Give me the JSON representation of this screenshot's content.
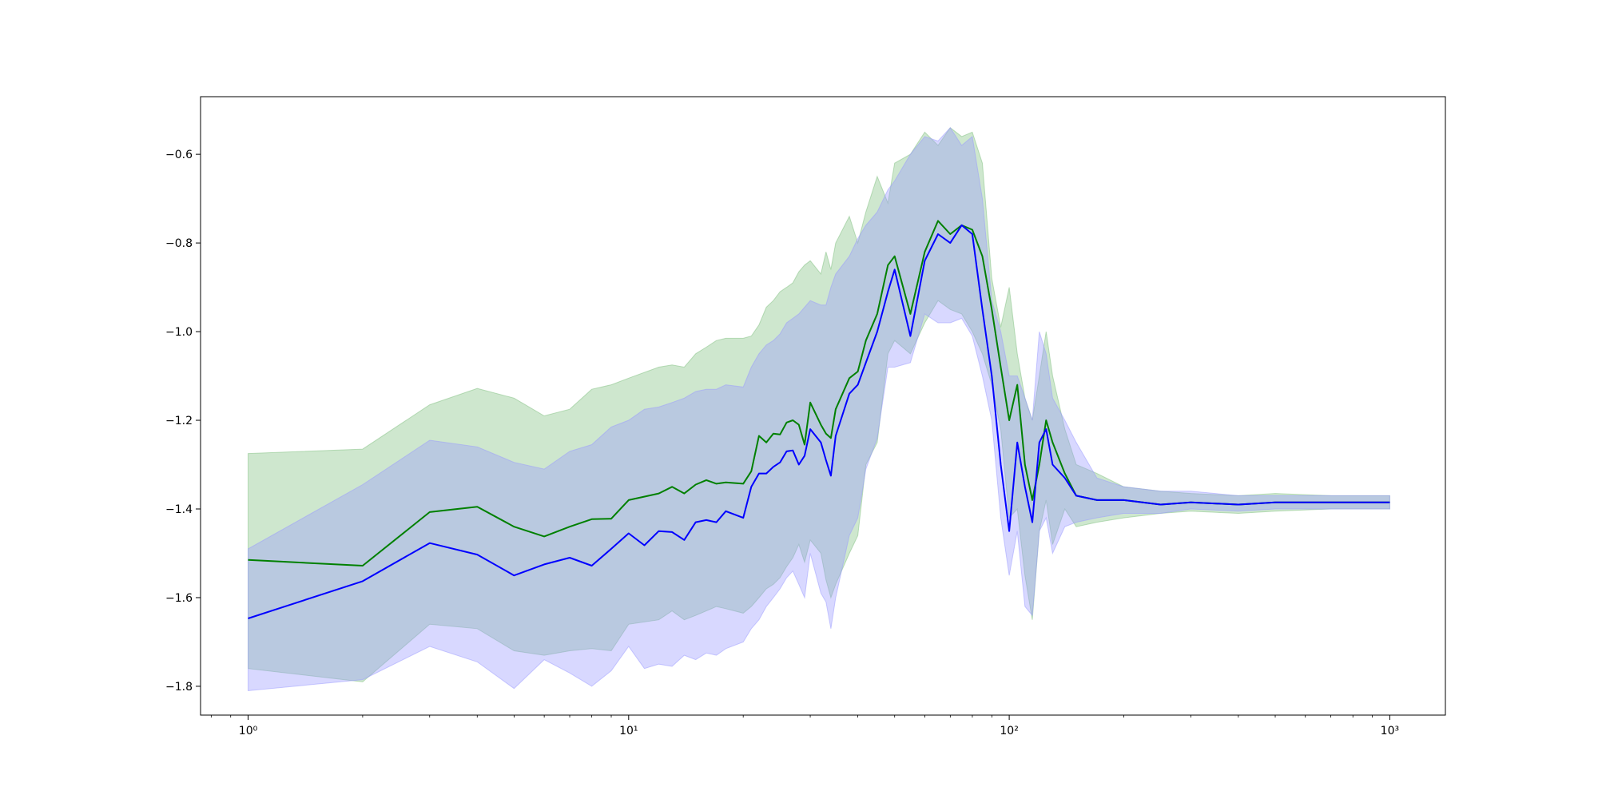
{
  "chart_data": {
    "type": "line",
    "title": "",
    "xlabel": "",
    "ylabel": "",
    "x_scale": "log",
    "xlim": [
      0.75,
      1400
    ],
    "ylim": [
      -1.865,
      -0.47
    ],
    "grid": false,
    "legend": "none",
    "x_ticks": [
      {
        "value": 1,
        "label": "10⁰"
      },
      {
        "value": 10,
        "label": "10¹"
      },
      {
        "value": 100,
        "label": "10²"
      },
      {
        "value": 1000,
        "label": "10³"
      }
    ],
    "y_ticks": [
      {
        "value": -0.6,
        "label": "−0.6"
      },
      {
        "value": -0.8,
        "label": "−0.8"
      },
      {
        "value": -1.0,
        "label": "−1.0"
      },
      {
        "value": -1.2,
        "label": "−1.2"
      },
      {
        "value": -1.4,
        "label": "−1.4"
      },
      {
        "value": -1.6,
        "label": "−1.6"
      },
      {
        "value": -1.8,
        "label": "−1.8"
      }
    ],
    "series": [
      {
        "color": "#008000",
        "band_color": "#7fbf7f",
        "x": [
          1,
          2,
          3,
          4,
          5,
          6,
          7,
          8,
          9,
          10,
          12,
          13,
          14,
          15,
          16,
          17,
          18,
          20,
          21,
          22,
          23,
          24,
          25,
          26,
          27,
          28,
          29,
          30,
          32,
          33,
          34,
          35,
          38,
          40,
          42,
          45,
          48,
          50,
          55,
          60,
          65,
          70,
          75,
          80,
          85,
          90,
          95,
          100,
          105,
          110,
          115,
          120,
          125,
          130,
          140,
          150,
          170,
          200,
          250,
          300,
          400,
          500,
          700,
          1000
        ],
        "mean": [
          -1.515,
          -1.528,
          -1.407,
          -1.395,
          -1.44,
          -1.462,
          -1.44,
          -1.423,
          -1.422,
          -1.38,
          -1.365,
          -1.35,
          -1.365,
          -1.345,
          -1.335,
          -1.343,
          -1.34,
          -1.343,
          -1.315,
          -1.235,
          -1.25,
          -1.23,
          -1.232,
          -1.205,
          -1.2,
          -1.21,
          -1.255,
          -1.16,
          -1.21,
          -1.23,
          -1.24,
          -1.175,
          -1.105,
          -1.09,
          -1.02,
          -0.96,
          -0.85,
          -0.83,
          -0.96,
          -0.82,
          -0.75,
          -0.78,
          -0.76,
          -0.77,
          -0.83,
          -0.95,
          -1.08,
          -1.2,
          -1.12,
          -1.3,
          -1.38,
          -1.3,
          -1.2,
          -1.25,
          -1.32,
          -1.37,
          -1.38,
          -1.38,
          -1.39,
          -1.385,
          -1.39,
          -1.385,
          -1.385,
          -1.385
        ],
        "upper": [
          -1.275,
          -1.265,
          -1.165,
          -1.128,
          -1.15,
          -1.19,
          -1.175,
          -1.13,
          -1.12,
          -1.105,
          -1.08,
          -1.075,
          -1.08,
          -1.05,
          -1.035,
          -1.02,
          -1.015,
          -1.015,
          -1.01,
          -0.985,
          -0.945,
          -0.93,
          -0.91,
          -0.9,
          -0.89,
          -0.865,
          -0.85,
          -0.84,
          -0.87,
          -0.82,
          -0.86,
          -0.8,
          -0.74,
          -0.8,
          -0.73,
          -0.65,
          -0.71,
          -0.62,
          -0.6,
          -0.55,
          -0.58,
          -0.54,
          -0.56,
          -0.55,
          -0.62,
          -0.88,
          -0.99,
          -0.9,
          -1.05,
          -1.15,
          -1.2,
          -1.1,
          -1.0,
          -1.1,
          -1.22,
          -1.3,
          -1.32,
          -1.35,
          -1.36,
          -1.365,
          -1.37,
          -1.365,
          -1.37,
          -1.37
        ],
        "lower": [
          -1.76,
          -1.79,
          -1.66,
          -1.67,
          -1.72,
          -1.73,
          -1.72,
          -1.715,
          -1.72,
          -1.66,
          -1.65,
          -1.63,
          -1.65,
          -1.64,
          -1.63,
          -1.62,
          -1.625,
          -1.635,
          -1.62,
          -1.6,
          -1.58,
          -1.57,
          -1.555,
          -1.53,
          -1.51,
          -1.48,
          -1.52,
          -1.47,
          -1.5,
          -1.56,
          -1.6,
          -1.57,
          -1.5,
          -1.46,
          -1.3,
          -1.25,
          -1.05,
          -1.02,
          -1.05,
          -0.98,
          -0.93,
          -0.95,
          -0.96,
          -1.0,
          -1.05,
          -1.12,
          -1.22,
          -1.42,
          -1.4,
          -1.55,
          -1.65,
          -1.45,
          -1.38,
          -1.48,
          -1.4,
          -1.44,
          -1.43,
          -1.42,
          -1.41,
          -1.405,
          -1.41,
          -1.405,
          -1.4,
          -1.4
        ]
      },
      {
        "color": "#0000ff",
        "band_color": "#9999ff",
        "x": [
          1,
          2,
          3,
          4,
          5,
          6,
          7,
          8,
          9,
          10,
          11,
          12,
          13,
          14,
          15,
          16,
          17,
          18,
          20,
          21,
          22,
          23,
          24,
          25,
          26,
          27,
          28,
          29,
          30,
          32,
          33,
          34,
          35,
          38,
          40,
          42,
          45,
          48,
          50,
          55,
          60,
          65,
          70,
          75,
          80,
          85,
          90,
          95,
          100,
          105,
          110,
          115,
          120,
          125,
          130,
          140,
          150,
          170,
          200,
          250,
          300,
          400,
          500,
          700,
          1000
        ],
        "mean": [
          -1.647,
          -1.563,
          -1.477,
          -1.503,
          -1.55,
          -1.525,
          -1.51,
          -1.528,
          -1.49,
          -1.455,
          -1.482,
          -1.45,
          -1.452,
          -1.47,
          -1.43,
          -1.425,
          -1.43,
          -1.405,
          -1.42,
          -1.35,
          -1.32,
          -1.32,
          -1.305,
          -1.295,
          -1.27,
          -1.268,
          -1.3,
          -1.28,
          -1.22,
          -1.25,
          -1.29,
          -1.325,
          -1.235,
          -1.14,
          -1.12,
          -1.07,
          -1.0,
          -0.91,
          -0.86,
          -1.01,
          -0.84,
          -0.78,
          -0.8,
          -0.76,
          -0.78,
          -0.95,
          -1.1,
          -1.3,
          -1.45,
          -1.25,
          -1.35,
          -1.43,
          -1.25,
          -1.22,
          -1.3,
          -1.33,
          -1.37,
          -1.38,
          -1.38,
          -1.39,
          -1.385,
          -1.39,
          -1.385,
          -1.385,
          -1.385
        ],
        "upper": [
          -1.49,
          -1.345,
          -1.245,
          -1.26,
          -1.295,
          -1.31,
          -1.27,
          -1.255,
          -1.215,
          -1.2,
          -1.175,
          -1.17,
          -1.16,
          -1.15,
          -1.135,
          -1.13,
          -1.13,
          -1.12,
          -1.125,
          -1.08,
          -1.05,
          -1.03,
          -1.02,
          -1.005,
          -0.98,
          -0.97,
          -0.96,
          -0.945,
          -0.93,
          -0.94,
          -0.94,
          -0.9,
          -0.87,
          -0.83,
          -0.79,
          -0.76,
          -0.73,
          -0.68,
          -0.66,
          -0.6,
          -0.56,
          -0.57,
          -0.54,
          -0.58,
          -0.56,
          -0.7,
          -0.93,
          -1.0,
          -1.1,
          -1.1,
          -1.15,
          -1.2,
          -1.0,
          -1.05,
          -1.15,
          -1.2,
          -1.25,
          -1.33,
          -1.35,
          -1.36,
          -1.36,
          -1.37,
          -1.37,
          -1.37,
          -1.37
        ],
        "lower": [
          -1.81,
          -1.785,
          -1.71,
          -1.745,
          -1.805,
          -1.74,
          -1.77,
          -1.8,
          -1.765,
          -1.71,
          -1.76,
          -1.75,
          -1.755,
          -1.73,
          -1.74,
          -1.725,
          -1.73,
          -1.715,
          -1.7,
          -1.67,
          -1.65,
          -1.62,
          -1.6,
          -1.58,
          -1.555,
          -1.54,
          -1.57,
          -1.6,
          -1.5,
          -1.59,
          -1.61,
          -1.67,
          -1.6,
          -1.46,
          -1.42,
          -1.31,
          -1.24,
          -1.08,
          -1.08,
          -1.07,
          -0.96,
          -0.98,
          -0.98,
          -0.97,
          -1.01,
          -1.1,
          -1.2,
          -1.42,
          -1.55,
          -1.45,
          -1.62,
          -1.64,
          -1.45,
          -1.42,
          -1.5,
          -1.44,
          -1.43,
          -1.42,
          -1.41,
          -1.41,
          -1.4,
          -1.405,
          -1.4,
          -1.4,
          -1.4
        ]
      }
    ]
  }
}
